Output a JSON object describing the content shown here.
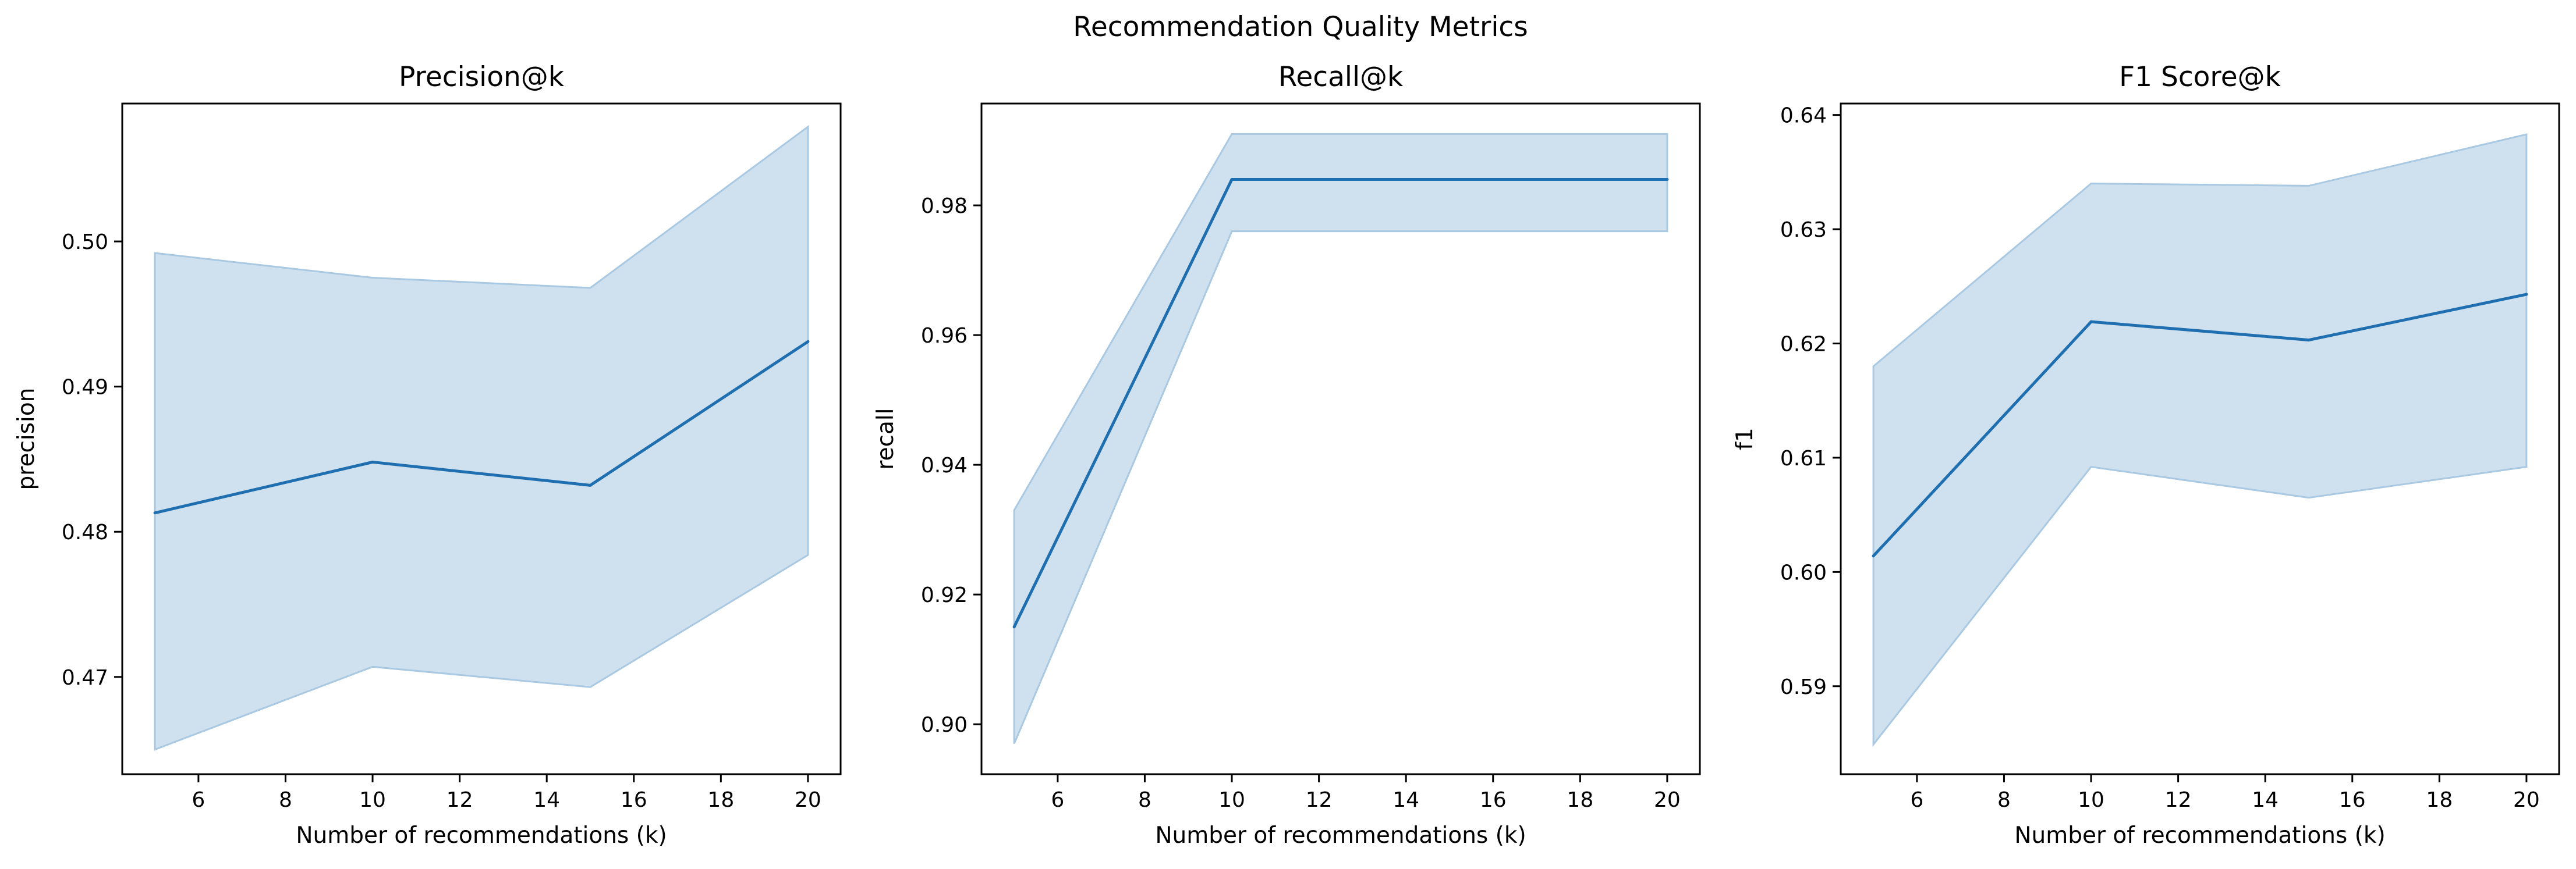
{
  "figure": {
    "suptitle": "Recommendation Quality Metrics"
  },
  "chart_data": [
    {
      "type": "line",
      "title": "Precision@k",
      "xlabel": "Number of recommendations (k)",
      "ylabel": "precision",
      "x": [
        5,
        10,
        15,
        20
      ],
      "series": [
        {
          "values": [
            0.4813,
            0.4848,
            0.4832,
            0.4931
          ],
          "ci_lower": [
            0.465,
            0.4707,
            0.4693,
            0.4784
          ],
          "ci_upper": [
            0.4992,
            0.4975,
            0.4968,
            0.5079
          ]
        }
      ],
      "xlim": [
        4.25,
        20.75
      ],
      "ylim": [
        0.4633,
        0.5095
      ],
      "xticks": [
        6,
        8,
        10,
        12,
        14,
        16,
        18,
        20
      ],
      "yticks": [
        0.47,
        0.48,
        0.49,
        0.5
      ],
      "ytick_labels": [
        "0.47",
        "0.48",
        "0.49",
        "0.50"
      ],
      "color": "#1f6fb0",
      "band_color": "#cfe1ef",
      "grid": false
    },
    {
      "type": "line",
      "title": "Recall@k",
      "xlabel": "Number of recommendations (k)",
      "ylabel": "recall",
      "x": [
        5,
        10,
        15,
        20
      ],
      "series": [
        {
          "values": [
            0.915,
            0.984,
            0.984,
            0.984
          ],
          "ci_lower": [
            0.897,
            0.976,
            0.976,
            0.976
          ],
          "ci_upper": [
            0.933,
            0.991,
            0.991,
            0.991
          ]
        }
      ],
      "xlim": [
        4.25,
        20.75
      ],
      "ylim": [
        0.8923,
        0.9957
      ],
      "xticks": [
        6,
        8,
        10,
        12,
        14,
        16,
        18,
        20
      ],
      "yticks": [
        0.9,
        0.92,
        0.94,
        0.96,
        0.98
      ],
      "ytick_labels": [
        "0.90",
        "0.92",
        "0.94",
        "0.96",
        "0.98"
      ],
      "color": "#1f6fb0",
      "band_color": "#cfe1ef",
      "grid": false
    },
    {
      "type": "line",
      "title": "F1 Score@k",
      "xlabel": "Number of recommendations (k)",
      "ylabel": "f1",
      "x": [
        5,
        10,
        15,
        20
      ],
      "series": [
        {
          "values": [
            0.6014,
            0.6219,
            0.6203,
            0.6243
          ],
          "ci_lower": [
            0.5849,
            0.6092,
            0.6065,
            0.6092
          ],
          "ci_upper": [
            0.618,
            0.634,
            0.6338,
            0.6383
          ]
        }
      ],
      "xlim": [
        4.25,
        20.75
      ],
      "ylim": [
        0.5823,
        0.641
      ],
      "xticks": [
        6,
        8,
        10,
        12,
        14,
        16,
        18,
        20
      ],
      "yticks": [
        0.59,
        0.6,
        0.61,
        0.62,
        0.63,
        0.64
      ],
      "ytick_labels": [
        "0.59",
        "0.60",
        "0.61",
        "0.62",
        "0.63",
        "0.64"
      ],
      "color": "#1f6fb0",
      "band_color": "#cfe1ef",
      "grid": false
    }
  ]
}
